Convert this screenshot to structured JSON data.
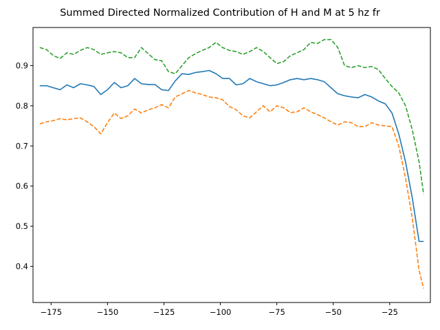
{
  "chart_data": {
    "type": "line",
    "title": "Summed Directed Normalized Contribution of H and M at 5 hz fr",
    "xlabel": "",
    "ylabel": "",
    "xlim": [
      -183,
      -7
    ],
    "ylim": [
      0.31,
      0.995
    ],
    "xticks": [
      -175,
      -150,
      -125,
      -100,
      -75,
      -50,
      -25
    ],
    "yticks": [
      0.4,
      0.5,
      0.6,
      0.7,
      0.8,
      0.9
    ],
    "xtick_labels": [
      "−175",
      "−150",
      "−125",
      "−100",
      "−75",
      "−50",
      "−25"
    ],
    "ytick_labels": [
      "0.4",
      "0.5",
      "0.6",
      "0.7",
      "0.8",
      "0.9"
    ],
    "grid": false,
    "legend": "none",
    "x": [
      -180,
      -177,
      -174,
      -171,
      -168,
      -165,
      -162,
      -159,
      -156,
      -153,
      -150,
      -147,
      -144,
      -141,
      -138,
      -135,
      -132,
      -129,
      -126,
      -123,
      -120,
      -117,
      -114,
      -111,
      -108,
      -105,
      -102,
      -99,
      -96,
      -93,
      -90,
      -87,
      -84,
      -81,
      -78,
      -75,
      -72,
      -69,
      -66,
      -63,
      -60,
      -57,
      -54,
      -51,
      -48,
      -45,
      -42,
      -39,
      -36,
      -33,
      -30,
      -27,
      -24,
      -21,
      -18,
      -15,
      -12,
      -10
    ],
    "series": [
      {
        "color": "#1f77b4",
        "dash": "solid",
        "values": [
          0.85,
          0.85,
          0.845,
          0.84,
          0.852,
          0.845,
          0.855,
          0.852,
          0.848,
          0.828,
          0.84,
          0.858,
          0.845,
          0.85,
          0.868,
          0.855,
          0.853,
          0.853,
          0.84,
          0.838,
          0.862,
          0.88,
          0.878,
          0.883,
          0.885,
          0.888,
          0.88,
          0.868,
          0.868,
          0.852,
          0.855,
          0.868,
          0.86,
          0.855,
          0.85,
          0.852,
          0.858,
          0.865,
          0.868,
          0.865,
          0.868,
          0.865,
          0.86,
          0.845,
          0.83,
          0.825,
          0.822,
          0.82,
          0.828,
          0.822,
          0.812,
          0.805,
          0.782,
          0.73,
          0.66,
          0.57,
          0.462,
          0.462
        ]
      },
      {
        "color": "#ff7f0e",
        "dash": "dashed",
        "values": [
          0.755,
          0.76,
          0.763,
          0.768,
          0.765,
          0.768,
          0.77,
          0.76,
          0.748,
          0.73,
          0.758,
          0.782,
          0.768,
          0.775,
          0.792,
          0.782,
          0.79,
          0.795,
          0.803,
          0.795,
          0.822,
          0.83,
          0.838,
          0.832,
          0.828,
          0.822,
          0.82,
          0.815,
          0.798,
          0.79,
          0.775,
          0.77,
          0.785,
          0.8,
          0.785,
          0.8,
          0.795,
          0.783,
          0.785,
          0.795,
          0.785,
          0.778,
          0.77,
          0.76,
          0.752,
          0.76,
          0.758,
          0.748,
          0.748,
          0.758,
          0.752,
          0.75,
          0.748,
          0.7,
          0.62,
          0.52,
          0.39,
          0.345
        ]
      },
      {
        "color": "#2ca02c",
        "dash": "dashed",
        "values": [
          0.945,
          0.94,
          0.925,
          0.918,
          0.932,
          0.928,
          0.938,
          0.945,
          0.94,
          0.928,
          0.932,
          0.935,
          0.932,
          0.92,
          0.92,
          0.945,
          0.93,
          0.915,
          0.912,
          0.885,
          0.88,
          0.9,
          0.92,
          0.93,
          0.938,
          0.945,
          0.958,
          0.945,
          0.938,
          0.935,
          0.928,
          0.935,
          0.945,
          0.935,
          0.92,
          0.905,
          0.91,
          0.925,
          0.932,
          0.94,
          0.958,
          0.955,
          0.965,
          0.965,
          0.945,
          0.9,
          0.895,
          0.9,
          0.895,
          0.898,
          0.89,
          0.868,
          0.848,
          0.832,
          0.8,
          0.74,
          0.66,
          0.58
        ]
      }
    ]
  }
}
